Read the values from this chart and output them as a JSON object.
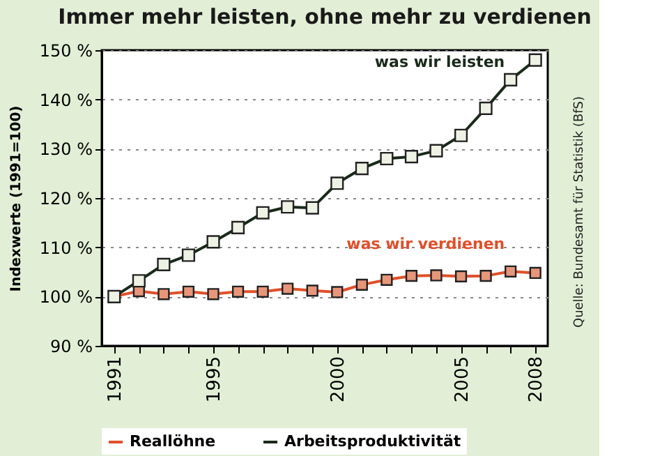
{
  "chart_data": {
    "type": "line",
    "title": "Immer mehr leisten, ohne mehr zu verdienen",
    "ylabel": "Indexwerte (1991=100)",
    "x": [
      1991,
      1992,
      1993,
      1994,
      1995,
      1996,
      1997,
      1998,
      1999,
      2000,
      2001,
      2002,
      2003,
      2004,
      2005,
      2006,
      2007,
      2008
    ],
    "series": [
      {
        "name": "Reallöhne",
        "color": "#e0502a",
        "values": [
          100,
          101.1,
          100.5,
          101,
          100.5,
          101,
          101,
          101.6,
          101.2,
          100.9,
          102.4,
          103.4,
          104.2,
          104.3,
          104.1,
          104.2,
          105.1,
          104.8
        ]
      },
      {
        "name": "Arbeitsproduktivität",
        "color": "#1a2a1a",
        "values": [
          100,
          103.2,
          106.5,
          108.4,
          111.1,
          114,
          117,
          118.2,
          118,
          123,
          126,
          128,
          128.4,
          129.6,
          132.7,
          138.2,
          144,
          148
        ]
      }
    ],
    "xlim": [
      1990.5,
      2008.5
    ],
    "xticks": [
      1991,
      {
        "value": 1992,
        "label": null
      },
      {
        "value": 1993,
        "label": null
      },
      {
        "value": 1994,
        "label": null
      },
      1995,
      {
        "value": 1996,
        "label": null
      },
      {
        "value": 1997,
        "label": null
      },
      {
        "value": 1998,
        "label": null
      },
      {
        "value": 1999,
        "label": null
      },
      2000,
      {
        "value": 2001,
        "label": null
      },
      {
        "value": 2002,
        "label": null
      },
      {
        "value": 2003,
        "label": null
      },
      {
        "value": 2004,
        "label": null
      },
      2005,
      {
        "value": 2006,
        "label": null
      },
      {
        "value": 2007,
        "label": null
      },
      2008
    ],
    "ylim": [
      90,
      150
    ],
    "yticks": [
      {
        "value": 90,
        "label": "90 %"
      },
      {
        "value": 100,
        "label": "100 %"
      },
      {
        "value": 110,
        "label": "110 %"
      },
      {
        "value": 120,
        "label": "120 %"
      },
      {
        "value": 130,
        "label": "130 %"
      },
      {
        "value": 140,
        "label": "140 %"
      },
      {
        "value": 150,
        "label": "150 %"
      }
    ],
    "grid": "y",
    "marker": "square",
    "line_style": "solid",
    "legend": "bottom",
    "annotations": [
      "was wir leisten",
      "was wir verdienen",
      "Quelle: Bundesamt für Statistik (BfS)"
    ]
  }
}
